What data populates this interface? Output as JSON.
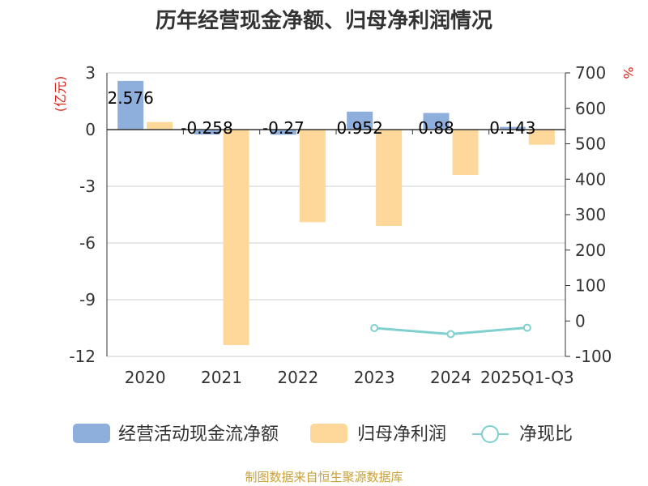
{
  "chart_data": {
    "type": "bar",
    "title": "历年经营现金净额、归母净利润情况",
    "categories": [
      "2020",
      "2021",
      "2022",
      "2023",
      "2024",
      "2025Q1-Q3"
    ],
    "left_axis": {
      "unit": "(亿元)",
      "ticks": [
        "3",
        "0",
        "-3",
        "-6",
        "-9",
        "-12"
      ],
      "range": [
        -12,
        3
      ]
    },
    "right_axis": {
      "unit": "%",
      "ticks": [
        "700",
        "600",
        "500",
        "400",
        "300",
        "200",
        "100",
        "0",
        "-100"
      ],
      "range": [
        -100,
        700
      ]
    },
    "series": [
      {
        "name": "经营活动现金流净额",
        "kind": "bar",
        "axis": "left",
        "color": "#8eaedb",
        "values": [
          2.576,
          -0.258,
          -0.27,
          0.952,
          0.88,
          0.143
        ],
        "labels": [
          "2.576",
          "-0.258",
          "-0.27",
          "0.952",
          "0.88",
          "0.143"
        ]
      },
      {
        "name": "归母净利润",
        "kind": "bar",
        "axis": "left",
        "color": "#fdd89a",
        "values": [
          0.4,
          -11.4,
          -4.9,
          -5.1,
          -2.4,
          -0.8
        ]
      },
      {
        "name": "净现比",
        "kind": "line",
        "axis": "right",
        "color": "#7fd0cf",
        "values": [
          null,
          null,
          null,
          -20,
          -37,
          -19
        ]
      }
    ],
    "legend_position": "bottom",
    "grid": true,
    "source": "制图数据来自恒生聚源数据库"
  }
}
